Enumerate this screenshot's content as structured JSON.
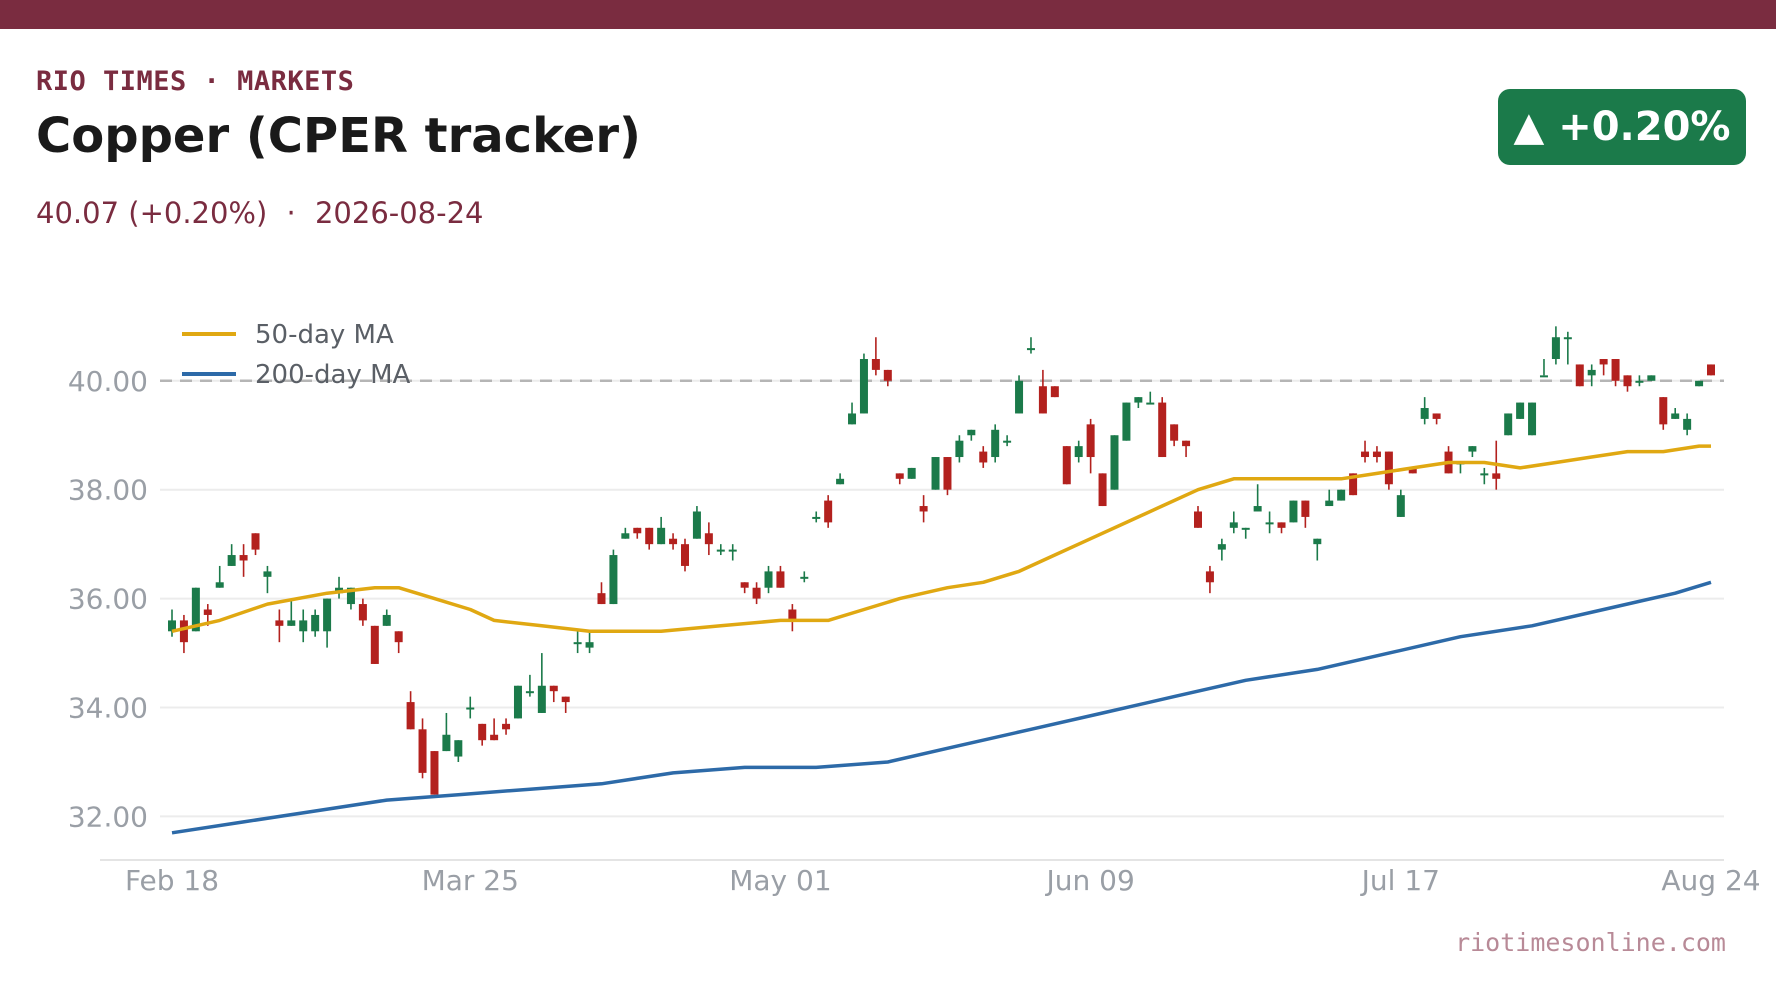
{
  "header": {
    "kicker": "RIO TIMES · MARKETS",
    "title": "Copper (CPER tracker)",
    "price": "40.07",
    "change": "(+0.20%)",
    "separator": "·",
    "date": "2026-08-24",
    "badge": "▲ +0.20%",
    "badge_color": "#1b7a4a"
  },
  "footer": {
    "source": "riotimesonline.com"
  },
  "colors": {
    "up": "#1b7a4a",
    "down": "#b3211e",
    "ma50": "#e0a812",
    "ma200": "#2d6aa8",
    "accent": "#7a2c40"
  },
  "chart_data": {
    "type": "candlestick",
    "title": "",
    "xlabel": "",
    "ylabel": "",
    "ylim": [
      31.2,
      41.3
    ],
    "y_ticks": [
      "32.00",
      "34.00",
      "36.00",
      "38.00",
      "40.00"
    ],
    "y_tick_values": [
      32,
      34,
      36,
      38,
      40
    ],
    "x_tick_labels": [
      "Feb 18",
      "Mar 25",
      "May 01",
      "Jun 09",
      "Jul 17",
      "Aug 24"
    ],
    "x_tick_index": [
      0,
      25,
      51,
      77,
      103,
      129
    ],
    "reference_line": 40.0,
    "grid": true,
    "legend": {
      "position": "top-left",
      "entries": [
        "50-day MA",
        "200-day MA"
      ]
    },
    "candles": [
      [
        35.4,
        35.6,
        35.8,
        35.3
      ],
      [
        35.6,
        35.2,
        35.7,
        35.0
      ],
      [
        35.4,
        36.2,
        36.2,
        35.4
      ],
      [
        35.8,
        35.7,
        35.9,
        35.5
      ],
      [
        36.2,
        36.3,
        36.6,
        36.2
      ],
      [
        36.6,
        36.8,
        37.0,
        36.6
      ],
      [
        36.8,
        36.7,
        37.0,
        36.4
      ],
      [
        37.2,
        36.9,
        37.2,
        36.8
      ],
      [
        36.4,
        36.5,
        36.6,
        36.1
      ],
      [
        35.6,
        35.5,
        35.8,
        35.2
      ],
      [
        35.5,
        35.6,
        36.0,
        35.5
      ],
      [
        35.4,
        35.6,
        35.8,
        35.2
      ],
      [
        35.4,
        35.7,
        35.8,
        35.3
      ],
      [
        35.4,
        36.0,
        36.0,
        35.1
      ],
      [
        36.1,
        36.2,
        36.4,
        36.0
      ],
      [
        35.9,
        36.2,
        36.2,
        35.8
      ],
      [
        35.9,
        35.6,
        36.0,
        35.5
      ],
      [
        35.5,
        34.8,
        35.5,
        34.8
      ],
      [
        35.5,
        35.7,
        35.8,
        35.5
      ],
      [
        35.4,
        35.2,
        35.4,
        35.0
      ],
      [
        34.1,
        33.6,
        34.3,
        33.6
      ],
      [
        33.6,
        32.8,
        33.8,
        32.7
      ],
      [
        33.2,
        32.4,
        33.2,
        32.4
      ],
      [
        33.2,
        33.5,
        33.9,
        33.2
      ],
      [
        33.1,
        33.4,
        33.4,
        33.0
      ],
      [
        34.0,
        34.0,
        34.2,
        33.8
      ],
      [
        33.7,
        33.4,
        33.7,
        33.3
      ],
      [
        33.5,
        33.4,
        33.8,
        33.4
      ],
      [
        33.7,
        33.6,
        33.8,
        33.5
      ],
      [
        33.8,
        34.4,
        34.4,
        33.8
      ],
      [
        34.3,
        34.3,
        34.6,
        34.2
      ],
      [
        33.9,
        34.4,
        35.0,
        33.9
      ],
      [
        34.4,
        34.3,
        34.4,
        34.1
      ],
      [
        34.2,
        34.1,
        34.2,
        33.9
      ],
      [
        35.2,
        35.2,
        35.4,
        35.0
      ],
      [
        35.1,
        35.2,
        35.4,
        35.0
      ],
      [
        36.1,
        35.9,
        36.3,
        35.9
      ],
      [
        35.9,
        36.8,
        36.9,
        35.9
      ],
      [
        37.1,
        37.2,
        37.3,
        37.1
      ],
      [
        37.3,
        37.2,
        37.3,
        37.1
      ],
      [
        37.3,
        37.0,
        37.3,
        36.9
      ],
      [
        37.0,
        37.3,
        37.5,
        37.0
      ],
      [
        37.1,
        37.0,
        37.2,
        36.9
      ],
      [
        37.0,
        36.6,
        37.1,
        36.5
      ],
      [
        37.1,
        37.6,
        37.7,
        37.1
      ],
      [
        37.2,
        37.0,
        37.4,
        36.8
      ],
      [
        36.9,
        36.9,
        37.0,
        36.8
      ],
      [
        36.9,
        36.9,
        37.0,
        36.7
      ],
      [
        36.3,
        36.2,
        36.3,
        36.1
      ],
      [
        36.2,
        36.0,
        36.3,
        35.9
      ],
      [
        36.2,
        36.5,
        36.6,
        36.1
      ],
      [
        36.5,
        36.2,
        36.6,
        36.2
      ],
      [
        35.8,
        35.6,
        35.9,
        35.4
      ],
      [
        36.4,
        36.4,
        36.5,
        36.3
      ],
      [
        37.5,
        37.5,
        37.6,
        37.4
      ],
      [
        37.8,
        37.4,
        37.9,
        37.3
      ],
      [
        38.1,
        38.2,
        38.3,
        38.1
      ],
      [
        39.2,
        39.4,
        39.6,
        39.2
      ],
      [
        39.4,
        40.4,
        40.5,
        39.4
      ],
      [
        40.4,
        40.2,
        40.8,
        40.1
      ],
      [
        40.2,
        40.0,
        40.2,
        39.9
      ],
      [
        38.3,
        38.2,
        38.3,
        38.1
      ],
      [
        38.2,
        38.4,
        38.4,
        38.2
      ],
      [
        37.7,
        37.6,
        37.9,
        37.4
      ],
      [
        38.0,
        38.6,
        38.6,
        38.0
      ],
      [
        38.6,
        38.0,
        38.6,
        37.9
      ],
      [
        38.6,
        38.9,
        39.0,
        38.5
      ],
      [
        39.0,
        39.1,
        39.1,
        38.9
      ],
      [
        38.7,
        38.5,
        38.8,
        38.4
      ],
      [
        38.6,
        39.1,
        39.2,
        38.5
      ],
      [
        38.9,
        38.9,
        39.0,
        38.8
      ],
      [
        39.4,
        40.0,
        40.1,
        39.4
      ],
      [
        40.6,
        40.6,
        40.8,
        40.5
      ],
      [
        39.9,
        39.4,
        40.2,
        39.4
      ],
      [
        39.9,
        39.7,
        39.9,
        39.7
      ],
      [
        38.8,
        38.1,
        38.8,
        38.1
      ],
      [
        38.6,
        38.8,
        38.9,
        38.5
      ],
      [
        39.2,
        38.6,
        39.3,
        38.3
      ],
      [
        38.3,
        37.7,
        38.3,
        37.7
      ],
      [
        38.0,
        39.0,
        39.0,
        38.0
      ],
      [
        38.9,
        39.6,
        39.6,
        38.9
      ],
      [
        39.6,
        39.7,
        39.7,
        39.5
      ],
      [
        39.6,
        39.6,
        39.8,
        39.6
      ],
      [
        39.6,
        38.6,
        39.7,
        38.6
      ],
      [
        39.2,
        38.9,
        39.2,
        38.8
      ],
      [
        38.9,
        38.8,
        38.9,
        38.6
      ],
      [
        37.6,
        37.3,
        37.7,
        37.3
      ],
      [
        36.5,
        36.3,
        36.6,
        36.1
      ],
      [
        36.9,
        37.0,
        37.1,
        36.7
      ],
      [
        37.3,
        37.4,
        37.6,
        37.2
      ],
      [
        37.3,
        37.3,
        37.3,
        37.1
      ],
      [
        37.6,
        37.7,
        38.1,
        37.6
      ],
      [
        37.4,
        37.4,
        37.6,
        37.2
      ],
      [
        37.4,
        37.3,
        37.4,
        37.2
      ],
      [
        37.4,
        37.8,
        37.8,
        37.4
      ],
      [
        37.8,
        37.5,
        37.8,
        37.3
      ],
      [
        37.0,
        37.1,
        37.1,
        36.7
      ],
      [
        37.7,
        37.8,
        38.0,
        37.7
      ],
      [
        37.8,
        38.0,
        38.0,
        37.8
      ],
      [
        38.3,
        37.9,
        38.3,
        37.9
      ],
      [
        38.7,
        38.6,
        38.9,
        38.5
      ],
      [
        38.7,
        38.6,
        38.8,
        38.5
      ],
      [
        38.7,
        38.1,
        38.7,
        38.0
      ],
      [
        37.5,
        37.9,
        38.0,
        37.5
      ],
      [
        38.4,
        38.3,
        38.4,
        38.3
      ],
      [
        39.3,
        39.5,
        39.7,
        39.2
      ],
      [
        39.4,
        39.3,
        39.4,
        39.2
      ],
      [
        38.7,
        38.3,
        38.8,
        38.3
      ],
      [
        38.5,
        38.5,
        38.5,
        38.3
      ],
      [
        38.7,
        38.8,
        38.8,
        38.6
      ],
      [
        38.3,
        38.3,
        38.4,
        38.1
      ],
      [
        38.3,
        38.2,
        38.9,
        38.0
      ],
      [
        39.0,
        39.4,
        39.4,
        39.0
      ],
      [
        39.3,
        39.6,
        39.6,
        39.3
      ],
      [
        39.0,
        39.6,
        39.6,
        39.0
      ],
      [
        40.1,
        40.1,
        40.4,
        40.1
      ],
      [
        40.4,
        40.8,
        41.0,
        40.3
      ],
      [
        40.8,
        40.8,
        40.9,
        40.3
      ],
      [
        40.3,
        39.9,
        40.3,
        39.9
      ],
      [
        40.1,
        40.2,
        40.3,
        39.9
      ],
      [
        40.4,
        40.3,
        40.4,
        40.1
      ],
      [
        40.4,
        40.0,
        40.4,
        39.9
      ],
      [
        40.1,
        39.9,
        40.1,
        39.8
      ],
      [
        40.0,
        40.0,
        40.1,
        39.9
      ],
      [
        40.0,
        40.1,
        40.1,
        40.0
      ],
      [
        39.7,
        39.2,
        39.7,
        39.1
      ],
      [
        39.3,
        39.4,
        39.5,
        39.3
      ],
      [
        39.1,
        39.3,
        39.4,
        39.0
      ],
      [
        39.9,
        40.0,
        40.0,
        39.9
      ],
      [
        40.3,
        40.1,
        40.3,
        40.1
      ]
    ],
    "series": [
      {
        "name": "50-day MA",
        "points": [
          [
            0,
            35.4
          ],
          [
            4,
            35.6
          ],
          [
            8,
            35.9
          ],
          [
            13,
            36.1
          ],
          [
            17,
            36.2
          ],
          [
            19,
            36.2
          ],
          [
            22,
            36.0
          ],
          [
            25,
            35.8
          ],
          [
            27,
            35.6
          ],
          [
            31,
            35.5
          ],
          [
            35,
            35.4
          ],
          [
            37,
            35.4
          ],
          [
            41,
            35.4
          ],
          [
            46,
            35.5
          ],
          [
            51,
            35.6
          ],
          [
            55,
            35.6
          ],
          [
            58,
            35.8
          ],
          [
            61,
            36.0
          ],
          [
            65,
            36.2
          ],
          [
            68,
            36.3
          ],
          [
            71,
            36.5
          ],
          [
            74,
            36.8
          ],
          [
            77,
            37.1
          ],
          [
            80,
            37.4
          ],
          [
            83,
            37.7
          ],
          [
            86,
            38.0
          ],
          [
            89,
            38.2
          ],
          [
            92,
            38.2
          ],
          [
            95,
            38.2
          ],
          [
            98,
            38.2
          ],
          [
            101,
            38.3
          ],
          [
            104,
            38.4
          ],
          [
            107,
            38.5
          ],
          [
            110,
            38.5
          ],
          [
            113,
            38.4
          ],
          [
            116,
            38.5
          ],
          [
            119,
            38.6
          ],
          [
            122,
            38.7
          ],
          [
            125,
            38.7
          ],
          [
            128,
            38.8
          ],
          [
            129,
            38.8
          ]
        ]
      },
      {
        "name": "200-day MA",
        "points": [
          [
            0,
            31.7
          ],
          [
            6,
            31.9
          ],
          [
            12,
            32.1
          ],
          [
            18,
            32.3
          ],
          [
            24,
            32.4
          ],
          [
            30,
            32.5
          ],
          [
            36,
            32.6
          ],
          [
            42,
            32.8
          ],
          [
            48,
            32.9
          ],
          [
            54,
            32.9
          ],
          [
            60,
            33.0
          ],
          [
            66,
            33.3
          ],
          [
            72,
            33.6
          ],
          [
            78,
            33.9
          ],
          [
            84,
            34.2
          ],
          [
            90,
            34.5
          ],
          [
            96,
            34.7
          ],
          [
            102,
            35.0
          ],
          [
            108,
            35.3
          ],
          [
            114,
            35.5
          ],
          [
            120,
            35.8
          ],
          [
            126,
            36.1
          ],
          [
            129,
            36.3
          ]
        ]
      }
    ]
  }
}
